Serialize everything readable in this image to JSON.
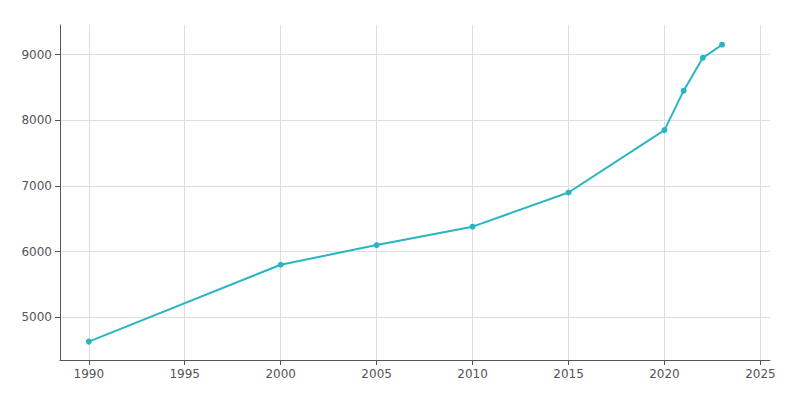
{
  "chart_data": {
    "type": "line",
    "x": [
      1990,
      2000,
      2005,
      2010,
      2015,
      2020,
      2021,
      2022,
      2023
    ],
    "values": [
      4630,
      5800,
      6100,
      6380,
      6900,
      7850,
      8450,
      8950,
      9150
    ],
    "color": "#29b5c3",
    "marker": "circle",
    "xlim": [
      1988.5,
      2025.5
    ],
    "ylim": [
      4350,
      9450
    ],
    "xticks": [
      1990,
      1995,
      2000,
      2005,
      2010,
      2015,
      2020,
      2025
    ],
    "yticks": [
      5000,
      6000,
      7000,
      8000,
      9000
    ],
    "grid": true
  }
}
